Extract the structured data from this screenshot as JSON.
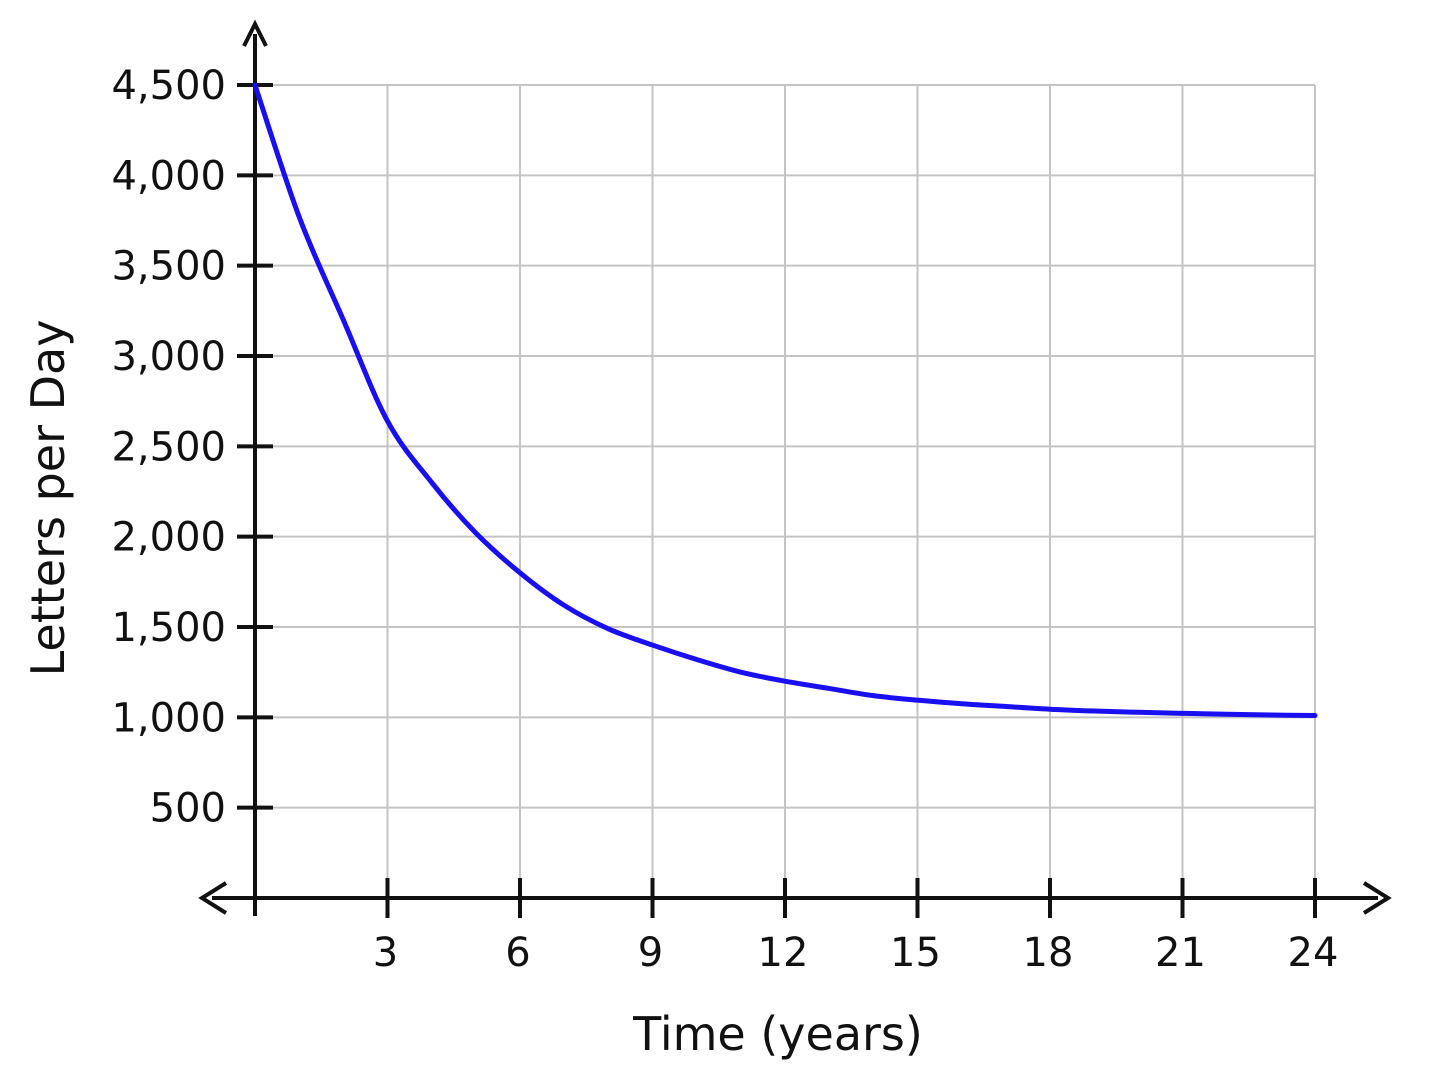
{
  "chart_data": {
    "type": "line",
    "xlabel": "Time (years)",
    "ylabel": "Letters per Day",
    "xlim": [
      0,
      24
    ],
    "ylim": [
      0,
      4500
    ],
    "x_ticks": [
      3,
      6,
      9,
      12,
      15,
      18,
      21,
      24
    ],
    "x_tick_labels": [
      "3",
      "6",
      "9",
      "12",
      "15",
      "18",
      "21",
      "24"
    ],
    "y_ticks": [
      500,
      1000,
      1500,
      2000,
      2500,
      3000,
      3500,
      4000,
      4500
    ],
    "y_tick_labels": [
      "500",
      "1,000",
      "1,500",
      "2,000",
      "2,500",
      "3,000",
      "3,500",
      "4,000",
      "4,500"
    ],
    "grid": true,
    "series": [
      {
        "color": "#1a0ff0",
        "x": [
          0,
          1,
          2,
          3,
          4,
          5,
          6,
          7,
          8,
          9,
          10,
          11,
          12,
          13,
          14,
          15,
          16,
          17,
          18,
          19,
          20,
          21,
          22,
          23,
          24
        ],
        "values": [
          4500,
          3770,
          3200,
          2640,
          2300,
          2020,
          1800,
          1620,
          1490,
          1400,
          1320,
          1250,
          1200,
          1160,
          1120,
          1095,
          1075,
          1060,
          1045,
          1035,
          1028,
          1022,
          1017,
          1013,
          1010
        ]
      }
    ],
    "colors": {
      "axis": "#111111",
      "grid": "#c4c4c4",
      "line": "#1a0ff0"
    }
  }
}
